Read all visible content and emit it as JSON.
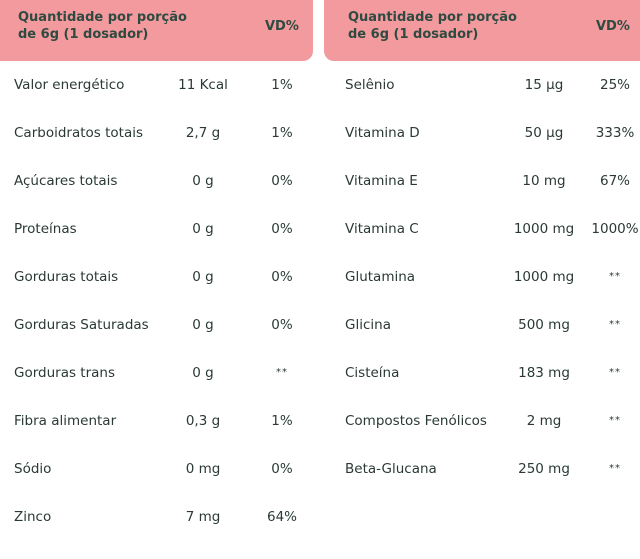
{
  "left": {
    "header": {
      "title": "Quantidade por porção de 6g (1 dosador)",
      "vd": "VD%"
    },
    "rows": [
      {
        "name": "Valor energético",
        "amount": "11 Kcal",
        "vd": "1%"
      },
      {
        "name": "Carboidratos totais",
        "amount": "2,7 g",
        "vd": "1%"
      },
      {
        "name": "Açúcares totais",
        "amount": "0 g",
        "vd": "0%"
      },
      {
        "name": "Proteínas",
        "amount": "0 g",
        "vd": "0%"
      },
      {
        "name": "Gorduras totais",
        "amount": "0 g",
        "vd": "0%"
      },
      {
        "name": "Gorduras Saturadas",
        "amount": "0 g",
        "vd": "0%"
      },
      {
        "name": "Gorduras trans",
        "amount": "0 g",
        "vd": "**"
      },
      {
        "name": "Fibra alimentar",
        "amount": "0,3 g",
        "vd": "1%"
      },
      {
        "name": "Sódio",
        "amount": "0 mg",
        "vd": "0%"
      },
      {
        "name": "Zinco",
        "amount": "7 mg",
        "vd": "64%"
      }
    ]
  },
  "right": {
    "header": {
      "title": "Quantidade por porção de 6g (1 dosador)",
      "vd": "VD%"
    },
    "rows": [
      {
        "name": "Selênio",
        "amount": "15 µg",
        "vd": "25%"
      },
      {
        "name": "Vitamina D",
        "amount": "50 µg",
        "vd": "333%"
      },
      {
        "name": "Vitamina E",
        "amount": "10 mg",
        "vd": "67%"
      },
      {
        "name": "Vitamina C",
        "amount": "1000 mg",
        "vd": "1000%"
      },
      {
        "name": "Glutamina",
        "amount": "1000 mg",
        "vd": "**"
      },
      {
        "name": "Glicina",
        "amount": "500 mg",
        "vd": "**"
      },
      {
        "name": "Cisteína",
        "amount": "183 mg",
        "vd": "**"
      },
      {
        "name": "Compostos Fenólicos",
        "amount": "2 mg",
        "vd": "**"
      },
      {
        "name": "Beta-Glucana",
        "amount": "250 mg",
        "vd": "**"
      }
    ]
  },
  "colors": {
    "header_bg": "#f39a9e",
    "header_text": "#2f4a40",
    "body_text": "#2a3a33"
  }
}
